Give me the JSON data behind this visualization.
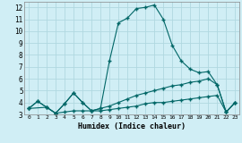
{
  "title": "",
  "xlabel": "Humidex (Indice chaleur)",
  "ylabel": "",
  "bg_color": "#d0eef5",
  "line_color": "#006666",
  "grid_color": "#b0d8e0",
  "xlim": [
    -0.5,
    23.5
  ],
  "ylim": [
    3,
    12.5
  ],
  "xticks": [
    0,
    1,
    2,
    3,
    4,
    5,
    6,
    7,
    8,
    9,
    10,
    11,
    12,
    13,
    14,
    15,
    16,
    17,
    18,
    19,
    20,
    21,
    22,
    23
  ],
  "yticks": [
    3,
    4,
    5,
    6,
    7,
    8,
    9,
    10,
    11,
    12
  ],
  "series": [
    {
      "x": [
        0,
        1,
        2,
        3,
        4,
        5,
        6,
        7,
        8,
        9,
        10,
        11,
        12,
        13,
        14,
        15,
        16,
        17,
        18,
        19,
        20,
        21,
        22,
        23
      ],
      "y": [
        3.5,
        4.1,
        3.6,
        3.1,
        3.2,
        3.3,
        3.3,
        3.3,
        3.3,
        3.4,
        3.5,
        3.6,
        3.7,
        3.9,
        4.0,
        4.0,
        4.1,
        4.2,
        4.3,
        4.4,
        4.5,
        4.6,
        3.2,
        4.0
      ]
    },
    {
      "x": [
        0,
        1,
        2,
        3,
        4,
        5,
        6,
        7,
        8,
        9,
        10,
        11,
        12,
        13,
        14,
        15,
        16,
        17,
        18,
        19,
        20,
        21,
        22,
        23
      ],
      "y": [
        3.5,
        4.1,
        3.6,
        3.1,
        3.9,
        4.8,
        4.0,
        3.3,
        3.5,
        3.7,
        4.0,
        4.3,
        4.6,
        4.8,
        5.0,
        5.2,
        5.4,
        5.5,
        5.7,
        5.8,
        6.0,
        5.5,
        3.2,
        4.0
      ]
    },
    {
      "x": [
        0,
        2,
        3,
        4,
        5,
        6,
        7,
        8,
        9,
        10,
        11,
        12,
        13,
        14,
        15,
        16,
        17,
        18,
        19,
        20,
        21,
        22,
        23
      ],
      "y": [
        3.5,
        3.6,
        3.1,
        3.9,
        4.8,
        4.0,
        3.3,
        3.5,
        7.5,
        10.7,
        11.1,
        11.9,
        12.0,
        12.2,
        11.0,
        8.8,
        7.5,
        6.8,
        6.5,
        6.6,
        5.5,
        3.2,
        4.0
      ]
    }
  ]
}
